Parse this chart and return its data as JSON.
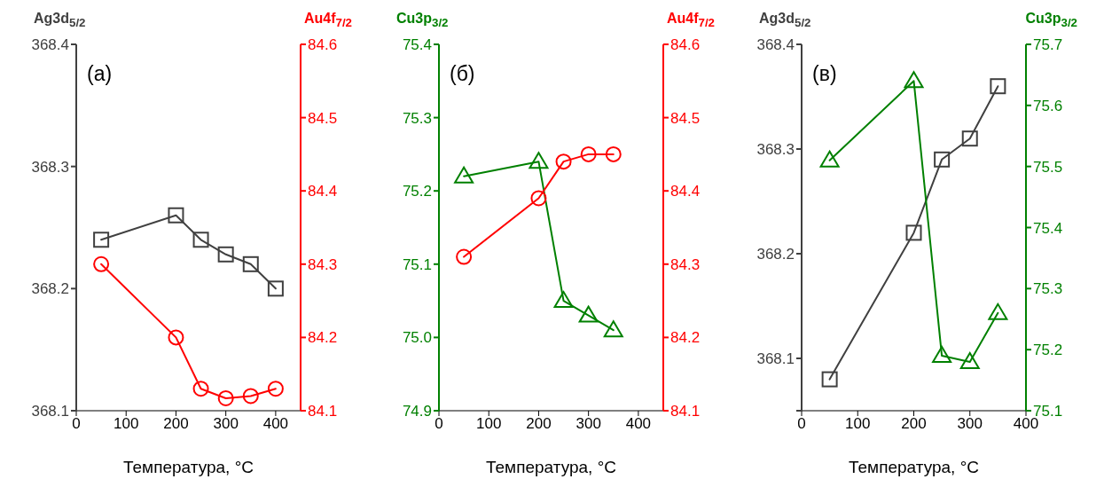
{
  "chart_data": [
    {
      "type": "line",
      "xlabel": "Температура, °C",
      "ylabel": "Ag3d$_{5/2}$",
      "y2label": "Au4f$_{7/2}$",
      "annotations": [
        "(а)"
      ],
      "x": [
        50,
        200,
        250,
        300,
        350,
        400
      ],
      "xlim": [
        0,
        450
      ],
      "xticks": [
        0,
        100,
        200,
        300,
        400
      ],
      "ylim": [
        368.1,
        368.4
      ],
      "yticks": [
        368.1,
        368.2,
        368.3,
        368.4
      ],
      "y2lim": [
        84.1,
        84.6
      ],
      "y2ticks": [
        84.1,
        84.2,
        84.3,
        84.4,
        84.5,
        84.6
      ],
      "grid": false,
      "legend": false,
      "line_style": "solid",
      "series": [
        {
          "color": "#404040",
          "marker": "square",
          "values": [
            368.24,
            368.26,
            368.24,
            368.228,
            368.22,
            368.2
          ]
        },
        {
          "color": "#ff0000",
          "marker": "circle",
          "axis": "y2",
          "values": [
            84.3,
            84.2,
            84.13,
            84.117,
            84.12,
            84.13
          ]
        }
      ]
    },
    {
      "type": "line",
      "xlabel": "Температура, °C",
      "ylabel": "Cu3p$_{3/2}$",
      "y2label": "Au4f$_{7/2}$",
      "annotations": [
        "(б)"
      ],
      "x": [
        50,
        200,
        250,
        300,
        350
      ],
      "xlim": [
        0,
        450
      ],
      "xticks": [
        0,
        100,
        200,
        300,
        400
      ],
      "ylim": [
        74.9,
        75.4
      ],
      "yticks": [
        {
          "value": 74.9,
          "label": "74.9"
        },
        {
          "value": 75.0,
          "label": "75.0"
        },
        75.1,
        75.2,
        75.3,
        75.4
      ],
      "y2lim": [
        84.1,
        84.6
      ],
      "y2ticks": [
        84.1,
        84.2,
        84.3,
        84.4,
        84.5,
        84.6
      ],
      "grid": false,
      "legend": false,
      "line_style": "solid",
      "series": [
        {
          "color": "#008000",
          "marker": "triangle",
          "values": [
            75.22,
            75.24,
            75.05,
            75.03,
            75.01
          ]
        },
        {
          "color": "#ff0000",
          "marker": "circle",
          "axis": "y2",
          "values": [
            84.31,
            84.39,
            84.44,
            84.45,
            84.45
          ]
        }
      ]
    },
    {
      "type": "line",
      "xlabel": "Температура, °C",
      "ylabel": "Ag3d$_{5/2}$",
      "y2label": "Cu3p$_{3/2}$",
      "annotations": [
        "(в)"
      ],
      "x": [
        50,
        200,
        250,
        300,
        350
      ],
      "xlim": [
        0,
        400
      ],
      "xticks": [
        0,
        100,
        200,
        300,
        400
      ],
      "ylim": [
        368.05,
        368.4
      ],
      "yticks": [
        {
          "value": 368.05,
          "label": null
        },
        368.1,
        368.2,
        368.3,
        368.4
      ],
      "y2lim": [
        75.1,
        75.7
      ],
      "y2ticks": [
        75.1,
        75.2,
        75.3,
        75.4,
        75.5,
        75.6,
        75.7
      ],
      "grid": false,
      "legend": false,
      "line_style": "solid",
      "series": [
        {
          "color": "#404040",
          "marker": "square",
          "values": [
            368.08,
            368.22,
            368.29,
            368.31,
            368.36
          ]
        },
        {
          "color": "#008000",
          "marker": "triangle",
          "axis": "y2",
          "values": [
            75.51,
            75.64,
            75.19,
            75.18,
            75.26
          ]
        }
      ]
    }
  ]
}
